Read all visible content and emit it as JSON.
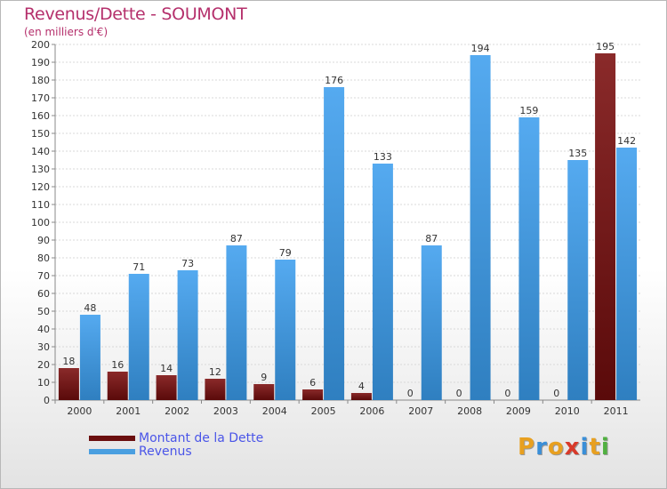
{
  "chart_data": {
    "type": "bar",
    "title": "Revenus/Dette - SOUMONT",
    "subtitle": "(en milliers d'€)",
    "categories": [
      "2000",
      "2001",
      "2002",
      "2003",
      "2004",
      "2005",
      "2006",
      "2007",
      "2008",
      "2009",
      "2010",
      "2011"
    ],
    "series": [
      {
        "name": "Montant de la Dette",
        "color": "#7a1a1a",
        "values": [
          18,
          16,
          14,
          12,
          9,
          6,
          4,
          0,
          0,
          0,
          0,
          195
        ]
      },
      {
        "name": "Revenus",
        "color": "#4a9fe0",
        "values": [
          48,
          71,
          73,
          87,
          79,
          176,
          133,
          87,
          194,
          159,
          135,
          142
        ]
      }
    ],
    "ylim": [
      0,
      200
    ],
    "ytick_step": 10,
    "legend_position": "bottom-left"
  },
  "legend": {
    "dette_label": "Montant de la Dette",
    "revenus_label": "Revenus"
  },
  "logo": {
    "letters": [
      "P",
      "r",
      "o",
      "x",
      "i",
      "t",
      "i"
    ],
    "colors": [
      "#e8a020",
      "#3a8fd8",
      "#e8a020",
      "#d83a2a",
      "#3a8fd8",
      "#e8a020",
      "#50b040"
    ]
  }
}
